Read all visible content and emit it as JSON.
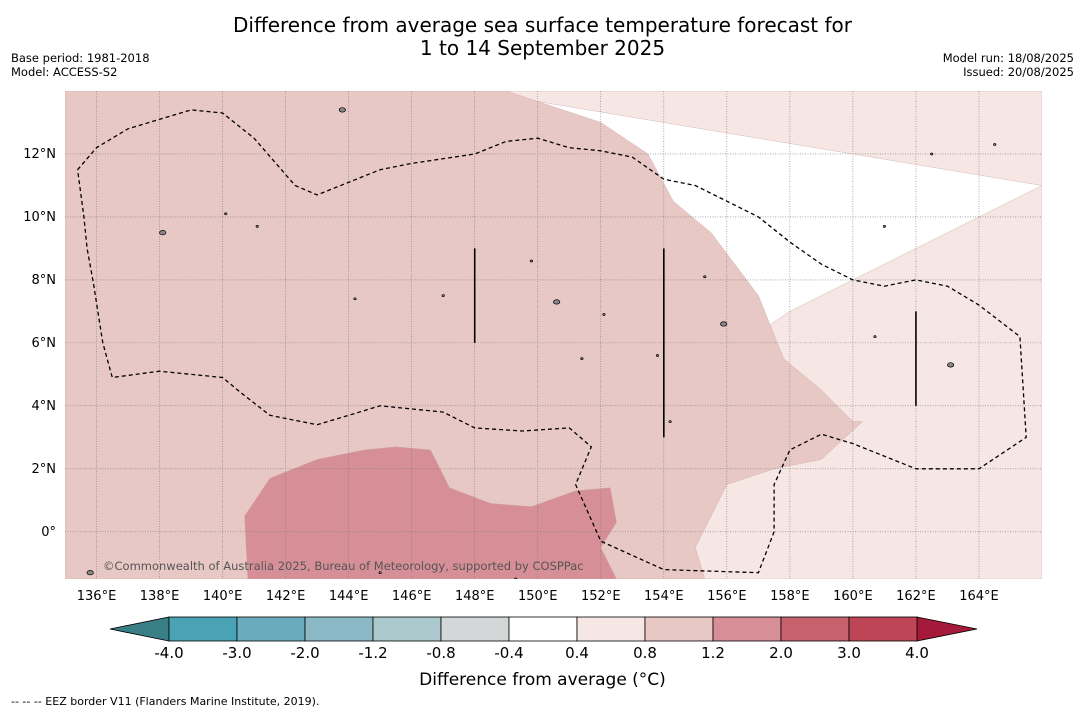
{
  "title_line1": "Difference from average sea surface temperature forecast for",
  "title_line2": "1 to 14 September 2025",
  "base_period": "Base period: 1981-2018",
  "model": "Model: ACCESS-S2",
  "model_run": "Model run: 18/08/2025",
  "issued": "Issued: 20/08/2025",
  "credit": "©Commonwealth of Australia 2025, Bureau of Meteorology, supported by COSPPac",
  "colorbar_title": "Difference from average (°C)",
  "footer_note": "--  --  -- EEZ border V11 (Flanders Marine Institute, 2019).",
  "chart_data": {
    "type": "heatmap",
    "x_label": "",
    "y_label": "",
    "xlim": [
      135,
      166
    ],
    "ylim": [
      -1.5,
      14
    ],
    "x_ticks": [
      136,
      138,
      140,
      142,
      144,
      146,
      148,
      150,
      152,
      154,
      156,
      158,
      160,
      162,
      164
    ],
    "x_tick_labels": [
      "136°E",
      "138°E",
      "140°E",
      "142°E",
      "144°E",
      "146°E",
      "148°E",
      "150°E",
      "152°E",
      "154°E",
      "156°E",
      "158°E",
      "160°E",
      "162°E",
      "164°E"
    ],
    "y_ticks": [
      0,
      2,
      4,
      6,
      8,
      10,
      12
    ],
    "y_tick_labels": [
      "0°",
      "2°N",
      "4°N",
      "6°N",
      "8°N",
      "10°N",
      "12°N"
    ],
    "grid": true,
    "colorbar": {
      "boundaries": [
        -4.0,
        -3.0,
        -2.0,
        -1.2,
        -0.8,
        -0.4,
        0.4,
        0.8,
        1.2,
        2.0,
        3.0,
        4.0
      ],
      "labels": [
        "-4.0",
        "-3.0",
        "-2.0",
        "-1.2",
        "-0.8",
        "-0.4",
        "0.4",
        "0.8",
        "1.2",
        "2.0",
        "3.0",
        "4.0"
      ],
      "colors": [
        "#4aa3b4",
        "#6aacbd",
        "#8bbac6",
        "#abc9cd",
        "#d3d7d8",
        "#ffffff",
        "#f6e7e5",
        "#e8c8c4",
        "#d78f97",
        "#c7626d",
        "#be4555"
      ],
      "under_color": "#3a7f86",
      "over_color": "#a5193a"
    },
    "regions": [
      {
        "level": "0.4 to 0.8",
        "color": "#f6e7e5",
        "polygon": [
          [
            148,
            14
          ],
          [
            155,
            14
          ],
          [
            160,
            14
          ],
          [
            166,
            14
          ],
          [
            166,
            -1.5
          ],
          [
            155,
            -1.5
          ],
          [
            153,
            -1.5
          ],
          [
            153.5,
            2
          ],
          [
            154.5,
            4
          ],
          [
            156.5,
            6
          ],
          [
            158,
            7
          ],
          [
            160,
            8
          ],
          [
            162,
            9
          ],
          [
            164,
            10
          ],
          [
            166,
            11
          ]
        ]
      },
      {
        "level": "0.8 to 1.2",
        "color": "#e8c8c4",
        "polygon": [
          [
            135,
            14
          ],
          [
            147,
            14
          ],
          [
            149,
            14
          ],
          [
            152,
            13
          ],
          [
            153.5,
            12
          ],
          [
            154.3,
            10.5
          ],
          [
            155.5,
            9.5
          ],
          [
            157,
            7.5
          ],
          [
            157.8,
            5.5
          ],
          [
            159,
            4.5
          ],
          [
            160,
            3.5
          ],
          [
            160.3,
            3.5
          ],
          [
            159,
            2.3
          ],
          [
            157.5,
            2
          ],
          [
            156,
            1.5
          ],
          [
            155.5,
            0.5
          ],
          [
            155,
            -0.5
          ],
          [
            155.3,
            -1.5
          ],
          [
            135,
            -1.5
          ]
        ]
      },
      {
        "level": "1.2 to 2.0",
        "color": "#d78f97",
        "polygon": [
          [
            140.8,
            -1.5
          ],
          [
            140.7,
            0.5
          ],
          [
            141.5,
            1.7
          ],
          [
            143,
            2.3
          ],
          [
            144.5,
            2.6
          ],
          [
            145.5,
            2.7
          ],
          [
            146.6,
            2.6
          ],
          [
            147.2,
            1.4
          ],
          [
            148.5,
            0.9
          ],
          [
            149.8,
            0.8
          ],
          [
            151.2,
            1.3
          ],
          [
            152.3,
            1.4
          ],
          [
            152.5,
            0.3
          ],
          [
            152,
            -0.5
          ],
          [
            152.5,
            -1.5
          ]
        ]
      }
    ],
    "eez_boundaries": [
      [
        [
          135.4,
          11.5
        ],
        [
          136,
          12.2
        ],
        [
          137,
          12.8
        ],
        [
          139,
          13.4
        ],
        [
          140,
          13.3
        ],
        [
          141,
          12.5
        ],
        [
          142.3,
          11
        ],
        [
          143,
          10.7
        ],
        [
          145,
          11.5
        ],
        [
          146,
          11.7
        ],
        [
          148,
          12
        ],
        [
          149,
          12.4
        ],
        [
          150,
          12.5
        ],
        [
          151,
          12.2
        ],
        [
          152,
          12.1
        ],
        [
          153,
          11.9
        ],
        [
          154,
          11.2
        ],
        [
          155,
          11
        ],
        [
          156,
          10.5
        ],
        [
          157,
          10
        ],
        [
          158,
          9.2
        ],
        [
          159,
          8.5
        ],
        [
          160,
          8
        ],
        [
          161,
          7.8
        ],
        [
          162,
          8
        ],
        [
          163,
          7.8
        ],
        [
          164,
          7.2
        ],
        [
          165.3,
          6.2
        ],
        [
          165.5,
          3
        ],
        [
          164,
          2
        ],
        [
          162,
          2
        ],
        [
          160,
          2.8
        ],
        [
          159,
          3.1
        ],
        [
          158,
          2.6
        ],
        [
          157.5,
          1.5
        ],
        [
          157.5,
          0
        ],
        [
          157,
          -1.3
        ],
        [
          154,
          -1.2
        ],
        [
          152,
          -0.3
        ],
        [
          151.2,
          1.5
        ],
        [
          151.7,
          2.7
        ],
        [
          151,
          3.3
        ],
        [
          149.5,
          3.2
        ],
        [
          148,
          3.3
        ],
        [
          147,
          3.8
        ],
        [
          145,
          4
        ],
        [
          144,
          3.7
        ],
        [
          143,
          3.4
        ],
        [
          141.5,
          3.7
        ],
        [
          140.6,
          4.4
        ],
        [
          140,
          4.9
        ],
        [
          138,
          5.1
        ],
        [
          136.5,
          4.9
        ],
        [
          136.2,
          6
        ],
        [
          135.9,
          7.9
        ],
        [
          135.7,
          9
        ],
        [
          135.6,
          10
        ],
        [
          135.4,
          11.5
        ]
      ]
    ],
    "vertical_markers": [
      {
        "x": 148,
        "y": [
          6,
          9
        ]
      },
      {
        "x": 154,
        "y": [
          3,
          9
        ]
      },
      {
        "x": 162,
        "y": [
          4,
          7
        ]
      }
    ],
    "islands": [
      [
        143.8,
        13.4
      ],
      [
        138.1,
        9.5
      ],
      [
        150.6,
        7.3
      ],
      [
        155.9,
        6.6
      ],
      [
        163.1,
        5.3
      ],
      [
        135.8,
        -1.3
      ],
      [
        140.1,
        10.1
      ],
      [
        141.1,
        9.7
      ],
      [
        155.3,
        8.1
      ],
      [
        144.2,
        7.4
      ],
      [
        153.8,
        5.6
      ],
      [
        162.5,
        12.0
      ],
      [
        164.5,
        12.3
      ],
      [
        152.1,
        6.9
      ],
      [
        147.0,
        7.5
      ],
      [
        149.8,
        8.6
      ],
      [
        154.2,
        3.5
      ],
      [
        160.7,
        6.2
      ],
      [
        161.0,
        9.7
      ],
      [
        151.4,
        5.5
      ],
      [
        145.0,
        -1.3
      ],
      [
        149.3,
        -1.5
      ]
    ]
  }
}
